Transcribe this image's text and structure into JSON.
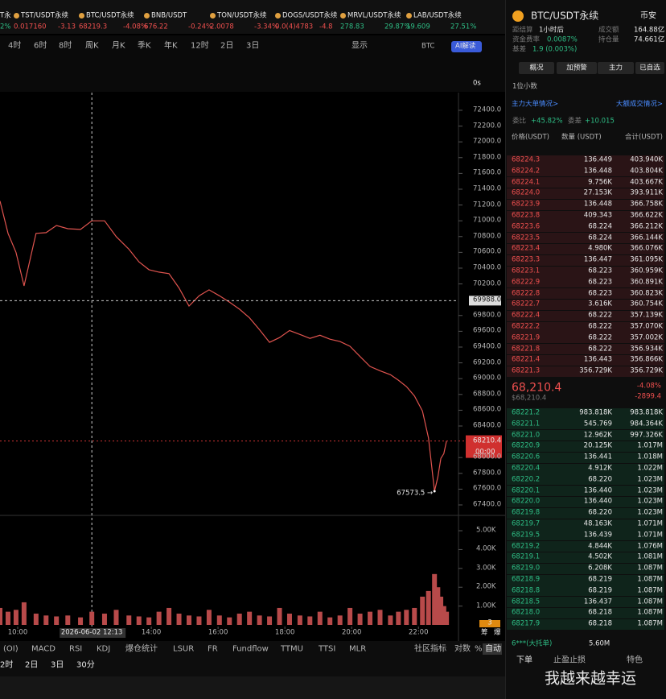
{
  "tickers": [
    {
      "symbol": "T永",
      "change": "2%"
    },
    {
      "symbol": "TST/USDT永续",
      "price": "0.017160",
      "change": "-3.13"
    },
    {
      "symbol": "BTC/USDT永续",
      "price": "68219.3",
      "change": "-4.08%"
    },
    {
      "symbol": "BNB/USDT",
      "price": "676.22",
      "change": "-0.24%"
    },
    {
      "symbol": "TON/USDT永续",
      "price": "2.0078",
      "change": "-3.34%"
    },
    {
      "symbol": "DOGS/USDT永续",
      "price": "0.0(4)4783",
      "change": "-4.8"
    },
    {
      "symbol": "MRVL/USDT永续",
      "price": "278.83",
      "change": "29.87%"
    },
    {
      "symbol": "LAB/USDT永续",
      "price": "19.609",
      "change": "27.51%"
    }
  ],
  "toolbar": {
    "intervals": [
      "4时",
      "6时",
      "8时",
      "周K",
      "月K",
      "季K",
      "年K",
      "12时",
      "2日",
      "3日"
    ],
    "display": "显示",
    "coin": "BTC",
    "ai": "AI解读",
    "timer": "0s"
  },
  "chart_data": [
    {
      "type": "line",
      "color": "#e0544f",
      "x": [
        9.47,
        9.71,
        9.95,
        10.19,
        10.55,
        10.85,
        11.16,
        11.5,
        11.88,
        12.22,
        12.6,
        12.95,
        13.33,
        13.63,
        13.93,
        14.23,
        14.53,
        14.83,
        15.13,
        15.43,
        15.73,
        16.04,
        16.34,
        16.64,
        16.94,
        17.24,
        17.54,
        17.84,
        18.14,
        18.45,
        18.75,
        19.05,
        19.35,
        19.65,
        19.95,
        20.25,
        20.55,
        20.85,
        21.16,
        21.4,
        21.64,
        21.88,
        22.12,
        22.3,
        22.48,
        22.58,
        22.67,
        22.76,
        22.84
      ],
      "values": [
        71250,
        70840,
        70600,
        70175,
        70840,
        70850,
        70940,
        70900,
        70890,
        71000,
        71000,
        70800,
        70640,
        70480,
        70380,
        70350,
        70330,
        70150,
        69920,
        70050,
        70125,
        70050,
        69970,
        69880,
        69770,
        69620,
        69460,
        69520,
        69610,
        69560,
        69510,
        69550,
        69500,
        69470,
        69410,
        69280,
        69155,
        69100,
        69050,
        68980,
        68900,
        68780,
        68590,
        68250,
        67573.5,
        67750,
        67990,
        68050,
        68210.4
      ],
      "xlim": [
        9.47,
        23.15
      ],
      "ylim": [
        67298,
        72624
      ],
      "yticks": [
        {
          "value": 72400,
          "label": "72400.0"
        },
        {
          "value": 72200,
          "label": "72200.0"
        },
        {
          "value": 72000,
          "label": "72000.0"
        },
        {
          "value": 71800,
          "label": "71800.0"
        },
        {
          "value": 71600,
          "label": "71600.0"
        },
        {
          "value": 71400,
          "label": "71400.0"
        },
        {
          "value": 71200,
          "label": "71200.0"
        },
        {
          "value": 71000,
          "label": "71000.0"
        },
        {
          "value": 70800,
          "label": "70800.0"
        },
        {
          "value": 70600,
          "label": "70600.0"
        },
        {
          "value": 70400,
          "label": "70400.0"
        },
        {
          "value": 70200,
          "label": "70200.0"
        },
        {
          "value": 69800,
          "label": "69800.0"
        },
        {
          "value": 69600,
          "label": "69600.0"
        },
        {
          "value": 69400,
          "label": "69400.0"
        },
        {
          "value": 69200,
          "label": "69200.0"
        },
        {
          "value": 69000,
          "label": "69000.0"
        },
        {
          "value": 68800,
          "label": "68800.0"
        },
        {
          "value": 68600,
          "label": "68600.0"
        },
        {
          "value": 68400,
          "label": "68400.0"
        },
        {
          "value": 68000,
          "label": "68000.0"
        },
        {
          "value": 67800,
          "label": "67800.0"
        },
        {
          "value": 67600,
          "label": "67600.0"
        },
        {
          "value": 67400,
          "label": "67400.0"
        }
      ],
      "crosshair": {
        "x": {
          "value": 12.22,
          "label": "2026-06-02 12:13"
        },
        "y": {
          "value": 69988,
          "label": "69988.0"
        }
      },
      "last": {
        "value": 68210.4,
        "label": "68210.4"
      },
      "countdown": "00:00",
      "low": {
        "x": 22.48,
        "value": 67573.5,
        "label": "67573.5 →"
      }
    },
    {
      "type": "bar",
      "color": "#b84a4a",
      "x": [
        9.47,
        9.71,
        9.95,
        10.19,
        10.55,
        10.85,
        11.16,
        11.5,
        11.88,
        12.22,
        12.6,
        12.95,
        13.33,
        13.63,
        13.93,
        14.23,
        14.53,
        14.83,
        15.13,
        15.43,
        15.73,
        16.04,
        16.34,
        16.64,
        16.94,
        17.24,
        17.54,
        17.84,
        18.14,
        18.45,
        18.75,
        19.05,
        19.35,
        19.65,
        19.95,
        20.25,
        20.55,
        20.85,
        21.16,
        21.4,
        21.64,
        21.88,
        22.12,
        22.3,
        22.48,
        22.58,
        22.67,
        22.76,
        22.84
      ],
      "values": [
        900,
        700,
        800,
        1200,
        600,
        500,
        450,
        500,
        400,
        700,
        600,
        800,
        500,
        450,
        400,
        700,
        900,
        600,
        500,
        450,
        800,
        500,
        400,
        600,
        700,
        500,
        450,
        900,
        600,
        500,
        450,
        700,
        400,
        500,
        900,
        600,
        700,
        800,
        500,
        700,
        800,
        900,
        1500,
        1800,
        2700,
        2000,
        1500,
        1000,
        700
      ],
      "xlim": [
        9.47,
        23.15
      ],
      "ylim": [
        0,
        5600
      ],
      "yticks": [
        {
          "value": 5000,
          "label": "5.00K"
        },
        {
          "value": 4000,
          "label": "4.00K"
        },
        {
          "value": 3000,
          "label": "3.00K"
        },
        {
          "value": 2000,
          "label": "2.00K"
        },
        {
          "value": 1000,
          "label": "1.00K"
        }
      ],
      "xticks": [
        {
          "value": 10,
          "label": "10:00"
        },
        {
          "value": 14,
          "label": "14:00"
        },
        {
          "value": 16,
          "label": "16:00"
        },
        {
          "value": 18,
          "label": "18:00"
        },
        {
          "value": 20,
          "label": "20:00"
        },
        {
          "value": 22,
          "label": "22:00"
        }
      ],
      "side": [
        "筹",
        "爆",
        "3"
      ]
    }
  ],
  "indicators": [
    "(OI)",
    "MACD",
    "RSI",
    "KDJ",
    "爆仓统计",
    "LSUR",
    "FR",
    "Fundflow",
    "TTMU",
    "TTSI",
    "MLR"
  ],
  "extra": [
    "社区指标",
    "对数",
    "%",
    "自动"
  ],
  "periods": [
    "2时",
    "2日",
    "3日",
    "30分"
  ],
  "panel": {
    "symbol": "BTC/USDT永续",
    "exchange": "币安",
    "stats": [
      [
        "距结算",
        "1小时后"
      ],
      [
        "成交额",
        "164.88亿"
      ],
      [
        "资金费率",
        "0.0087%"
      ],
      [
        "持仓量",
        "74.661亿"
      ],
      [
        "基差",
        "1.9 (0.003%)"
      ]
    ],
    "buttons": [
      "概况",
      "加预警",
      "主力",
      "已自选"
    ],
    "precision": "1位小数",
    "links": [
      "主力大单情况>",
      "大额成交情况>"
    ],
    "ratio": [
      [
        "委比",
        "+45.82%"
      ],
      [
        "委差",
        "+10.015"
      ]
    ],
    "columns": [
      "价格(USDT)",
      "数量 (USDT)",
      "合计(USDT)"
    ],
    "asks": [
      [
        "68224.3",
        "136.449",
        "403.940K"
      ],
      [
        "68224.2",
        "136.448",
        "403.804K"
      ],
      [
        "68224.1",
        "9.756K",
        "403.667K"
      ],
      [
        "68224.0",
        "27.153K",
        "393.911K"
      ],
      [
        "68223.9",
        "136.448",
        "366.758K"
      ],
      [
        "68223.8",
        "409.343",
        "366.622K"
      ],
      [
        "68223.6",
        "68.224",
        "366.212K"
      ],
      [
        "68223.5",
        "68.224",
        "366.144K"
      ],
      [
        "68223.4",
        "4.980K",
        "366.076K"
      ],
      [
        "68223.3",
        "136.447",
        "361.095K"
      ],
      [
        "68223.1",
        "68.223",
        "360.959K"
      ],
      [
        "68222.9",
        "68.223",
        "360.891K"
      ],
      [
        "68222.8",
        "68.223",
        "360.823K"
      ],
      [
        "68222.7",
        "3.616K",
        "360.754K"
      ],
      [
        "68222.4",
        "68.222",
        "357.139K"
      ],
      [
        "68222.2",
        "68.222",
        "357.070K"
      ],
      [
        "68221.9",
        "68.222",
        "357.002K"
      ],
      [
        "68221.8",
        "68.222",
        "356.934K"
      ],
      [
        "68221.4",
        "136.443",
        "356.866K"
      ],
      [
        "68221.3",
        "356.729K",
        "356.729K"
      ]
    ],
    "last": {
      "price": "68,210.4",
      "change": "-4.08%",
      "usd": "$68,210.4",
      "diff": "-2899.4"
    },
    "bids": [
      [
        "68221.2",
        "983.818K",
        "983.818K"
      ],
      [
        "68221.1",
        "545.769",
        "984.364K"
      ],
      [
        "68221.0",
        "12.962K",
        "997.326K"
      ],
      [
        "68220.9",
        "20.125K",
        "1.017M"
      ],
      [
        "68220.6",
        "136.441",
        "1.018M"
      ],
      [
        "68220.4",
        "4.912K",
        "1.022M"
      ],
      [
        "68220.2",
        "68.220",
        "1.023M"
      ],
      [
        "68220.1",
        "136.440",
        "1.023M"
      ],
      [
        "68220.0",
        "136.440",
        "1.023M"
      ],
      [
        "68219.8",
        "68.220",
        "1.023M"
      ],
      [
        "68219.7",
        "48.163K",
        "1.071M"
      ],
      [
        "68219.5",
        "136.439",
        "1.071M"
      ],
      [
        "68219.2",
        "4.844K",
        "1.076M"
      ],
      [
        "68219.1",
        "4.502K",
        "1.081M"
      ],
      [
        "68219.0",
        "6.208K",
        "1.087M"
      ],
      [
        "68218.9",
        "68.219",
        "1.087M"
      ],
      [
        "68218.8",
        "68.219",
        "1.087M"
      ],
      [
        "68218.5",
        "136.437",
        "1.087M"
      ],
      [
        "68218.0",
        "68.218",
        "1.087M"
      ],
      [
        "68217.9",
        "68.218",
        "1.087M"
      ]
    ],
    "big_order": [
      "6***(大托单)",
      "5.60M"
    ],
    "tabs": [
      "下单",
      "止盈止损",
      "特色"
    ]
  },
  "watermark": "我越来越幸运"
}
